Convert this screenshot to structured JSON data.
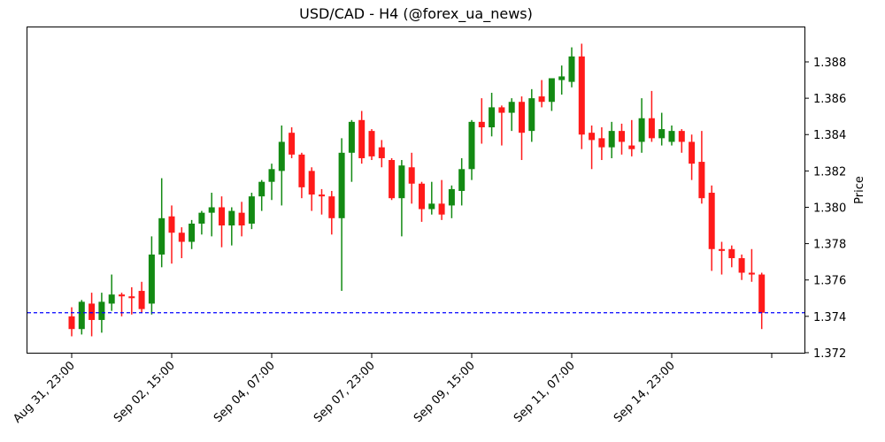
{
  "chart_data": {
    "type": "candlestick",
    "title": "USD/CAD - H4 (@forex_ua_news)",
    "xlabel": "",
    "ylabel": "Price",
    "ylim": [
      1.372,
      1.3898
    ],
    "yticks": [
      "1.372",
      "1.374",
      "1.376",
      "1.378",
      "1.380",
      "1.382",
      "1.384",
      "1.386",
      "1.388"
    ],
    "xticks": [
      "Aug 31, 23:00",
      "Sep 02, 15:00",
      "Sep 04, 07:00",
      "Sep 07, 23:00",
      "Sep 09, 15:00",
      "Sep 11, 07:00",
      "Sep 14, 23:00",
      ""
    ],
    "xtick_index": [
      0,
      10,
      20,
      30,
      40,
      50,
      60,
      70
    ],
    "reference_line": {
      "value": 1.3742,
      "color": "#0000ff",
      "style": "dashed"
    },
    "colors": {
      "up": "#138a13",
      "down": "#ff1a1a"
    },
    "candles": [
      {
        "o": 1.374,
        "h": 1.3745,
        "l": 1.3729,
        "c": 1.3733
      },
      {
        "o": 1.3733,
        "h": 1.3749,
        "l": 1.373,
        "c": 1.3748
      },
      {
        "o": 1.3747,
        "h": 1.3753,
        "l": 1.3729,
        "c": 1.3738
      },
      {
        "o": 1.3738,
        "h": 1.3753,
        "l": 1.3731,
        "c": 1.3748
      },
      {
        "o": 1.3747,
        "h": 1.3763,
        "l": 1.3743,
        "c": 1.3752
      },
      {
        "o": 1.3752,
        "h": 1.3753,
        "l": 1.374,
        "c": 1.3751
      },
      {
        "o": 1.3751,
        "h": 1.3756,
        "l": 1.3741,
        "c": 1.375
      },
      {
        "o": 1.3754,
        "h": 1.3759,
        "l": 1.3742,
        "c": 1.3744
      },
      {
        "o": 1.3747,
        "h": 1.3784,
        "l": 1.3741,
        "c": 1.3774
      },
      {
        "o": 1.3774,
        "h": 1.3816,
        "l": 1.3767,
        "c": 1.3794
      },
      {
        "o": 1.3795,
        "h": 1.3801,
        "l": 1.3769,
        "c": 1.3786
      },
      {
        "o": 1.3786,
        "h": 1.3789,
        "l": 1.3772,
        "c": 1.3781
      },
      {
        "o": 1.3781,
        "h": 1.3793,
        "l": 1.3777,
        "c": 1.3791
      },
      {
        "o": 1.3791,
        "h": 1.3798,
        "l": 1.3785,
        "c": 1.3797
      },
      {
        "o": 1.3797,
        "h": 1.3808,
        "l": 1.3784,
        "c": 1.38
      },
      {
        "o": 1.38,
        "h": 1.3806,
        "l": 1.3778,
        "c": 1.379
      },
      {
        "o": 1.379,
        "h": 1.38,
        "l": 1.3779,
        "c": 1.3798
      },
      {
        "o": 1.3797,
        "h": 1.3803,
        "l": 1.3784,
        "c": 1.379
      },
      {
        "o": 1.3791,
        "h": 1.3808,
        "l": 1.3788,
        "c": 1.3806
      },
      {
        "o": 1.3806,
        "h": 1.3815,
        "l": 1.3798,
        "c": 1.3814
      },
      {
        "o": 1.3814,
        "h": 1.3824,
        "l": 1.3804,
        "c": 1.3821
      },
      {
        "o": 1.382,
        "h": 1.3845,
        "l": 1.3801,
        "c": 1.3836
      },
      {
        "o": 1.3841,
        "h": 1.3844,
        "l": 1.3827,
        "c": 1.3829
      },
      {
        "o": 1.3829,
        "h": 1.383,
        "l": 1.3805,
        "c": 1.3811
      },
      {
        "o": 1.382,
        "h": 1.3822,
        "l": 1.3798,
        "c": 1.3807
      },
      {
        "o": 1.3807,
        "h": 1.381,
        "l": 1.3796,
        "c": 1.3806
      },
      {
        "o": 1.3806,
        "h": 1.3809,
        "l": 1.3785,
        "c": 1.3794
      },
      {
        "o": 1.3794,
        "h": 1.3838,
        "l": 1.3754,
        "c": 1.383
      },
      {
        "o": 1.383,
        "h": 1.3848,
        "l": 1.3814,
        "c": 1.3847
      },
      {
        "o": 1.3848,
        "h": 1.3853,
        "l": 1.3824,
        "c": 1.3827
      },
      {
        "o": 1.3842,
        "h": 1.3843,
        "l": 1.3826,
        "c": 1.3828
      },
      {
        "o": 1.3833,
        "h": 1.3837,
        "l": 1.3822,
        "c": 1.3827
      },
      {
        "o": 1.3826,
        "h": 1.3827,
        "l": 1.3804,
        "c": 1.3805
      },
      {
        "o": 1.3805,
        "h": 1.3826,
        "l": 1.3784,
        "c": 1.3823
      },
      {
        "o": 1.3822,
        "h": 1.383,
        "l": 1.3802,
        "c": 1.3813
      },
      {
        "o": 1.3813,
        "h": 1.3814,
        "l": 1.3792,
        "c": 1.3799
      },
      {
        "o": 1.3799,
        "h": 1.3814,
        "l": 1.3796,
        "c": 1.3802
      },
      {
        "o": 1.3802,
        "h": 1.3815,
        "l": 1.3793,
        "c": 1.3796
      },
      {
        "o": 1.3801,
        "h": 1.3812,
        "l": 1.3794,
        "c": 1.381
      },
      {
        "o": 1.3809,
        "h": 1.3827,
        "l": 1.3801,
        "c": 1.3821
      },
      {
        "o": 1.3821,
        "h": 1.3848,
        "l": 1.3815,
        "c": 1.3847
      },
      {
        "o": 1.3847,
        "h": 1.386,
        "l": 1.3835,
        "c": 1.3844
      },
      {
        "o": 1.3844,
        "h": 1.3863,
        "l": 1.3839,
        "c": 1.3855
      },
      {
        "o": 1.3855,
        "h": 1.3856,
        "l": 1.3834,
        "c": 1.3852
      },
      {
        "o": 1.3852,
        "h": 1.386,
        "l": 1.3842,
        "c": 1.3858
      },
      {
        "o": 1.3858,
        "h": 1.3861,
        "l": 1.3826,
        "c": 1.3841
      },
      {
        "o": 1.3842,
        "h": 1.3865,
        "l": 1.3836,
        "c": 1.386
      },
      {
        "o": 1.3861,
        "h": 1.387,
        "l": 1.3855,
        "c": 1.3858
      },
      {
        "o": 1.3858,
        "h": 1.3871,
        "l": 1.3853,
        "c": 1.3871
      },
      {
        "o": 1.387,
        "h": 1.3878,
        "l": 1.3862,
        "c": 1.3872
      },
      {
        "o": 1.3869,
        "h": 1.3888,
        "l": 1.3866,
        "c": 1.3883
      },
      {
        "o": 1.3883,
        "h": 1.389,
        "l": 1.3832,
        "c": 1.384
      },
      {
        "o": 1.3841,
        "h": 1.3845,
        "l": 1.3821,
        "c": 1.3837
      },
      {
        "o": 1.3838,
        "h": 1.3844,
        "l": 1.3826,
        "c": 1.3833
      },
      {
        "o": 1.3833,
        "h": 1.3847,
        "l": 1.3827,
        "c": 1.3842
      },
      {
        "o": 1.3842,
        "h": 1.3846,
        "l": 1.3829,
        "c": 1.3836
      },
      {
        "o": 1.3834,
        "h": 1.3848,
        "l": 1.3828,
        "c": 1.3832
      },
      {
        "o": 1.3836,
        "h": 1.386,
        "l": 1.383,
        "c": 1.3849
      },
      {
        "o": 1.3849,
        "h": 1.3864,
        "l": 1.3836,
        "c": 1.3838
      },
      {
        "o": 1.3838,
        "h": 1.3852,
        "l": 1.3834,
        "c": 1.3843
      },
      {
        "o": 1.3836,
        "h": 1.3845,
        "l": 1.3834,
        "c": 1.3842
      },
      {
        "o": 1.3842,
        "h": 1.3843,
        "l": 1.383,
        "c": 1.3836
      },
      {
        "o": 1.3836,
        "h": 1.384,
        "l": 1.3815,
        "c": 1.3824
      },
      {
        "o": 1.3825,
        "h": 1.3842,
        "l": 1.3802,
        "c": 1.3805
      },
      {
        "o": 1.3808,
        "h": 1.3812,
        "l": 1.3765,
        "c": 1.3777
      },
      {
        "o": 1.3777,
        "h": 1.3781,
        "l": 1.3763,
        "c": 1.3776
      },
      {
        "o": 1.3777,
        "h": 1.3779,
        "l": 1.3767,
        "c": 1.3772
      },
      {
        "o": 1.3772,
        "h": 1.3774,
        "l": 1.376,
        "c": 1.3764
      },
      {
        "o": 1.3764,
        "h": 1.3777,
        "l": 1.3759,
        "c": 1.3763
      },
      {
        "o": 1.3763,
        "h": 1.3764,
        "l": 1.3733,
        "c": 1.3742
      }
    ]
  }
}
